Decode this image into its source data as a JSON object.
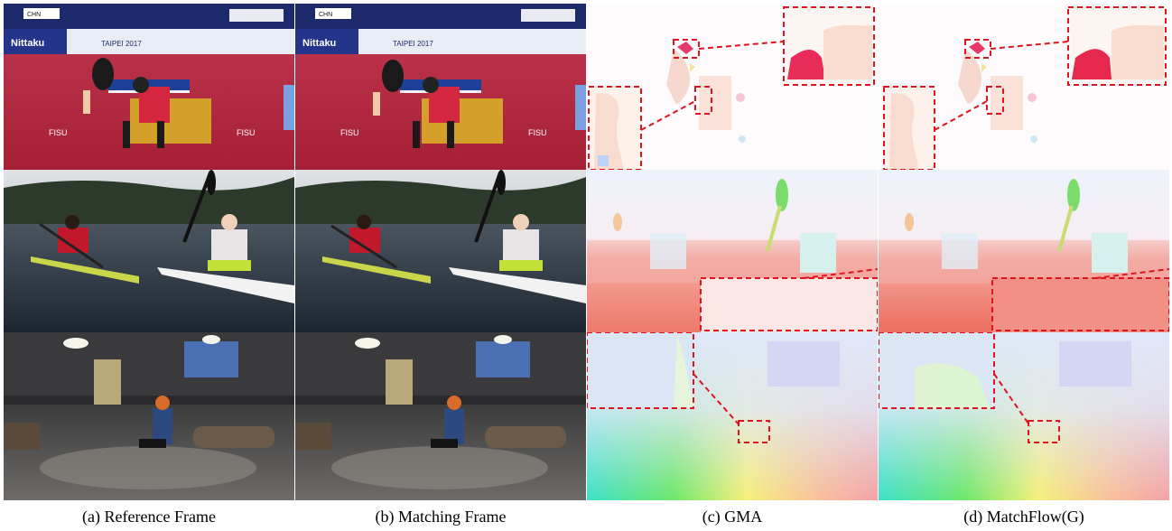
{
  "figure": {
    "captions": [
      "(a) Reference Frame",
      "(b) Matching Frame",
      "(c) GMA",
      "(d) MatchFlow(G)"
    ],
    "photo_text": {
      "banner_brand": "Nittaku",
      "banner_event": "TAIPEI 2017",
      "score_label": "CHN",
      "floor_logo": "FISU"
    },
    "accent_colors": {
      "highlight_box": "#e0141e",
      "table_floor": "#b8283c",
      "flow_background": "#fdfbfb"
    }
  }
}
